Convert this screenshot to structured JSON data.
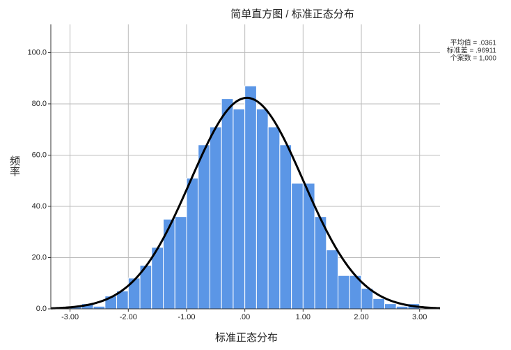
{
  "chart_data": {
    "type": "histogram",
    "title": "简单直方图 / 标准正态分布",
    "x_label": "标准正态分布",
    "y_label": "频率",
    "bins": [
      -3.0,
      -2.8,
      -2.6,
      -2.4,
      -2.2,
      -2.0,
      -1.8,
      -1.6,
      -1.4,
      -1.2,
      -1.0,
      -0.8,
      -0.6,
      -0.4,
      -0.2,
      0.0,
      0.2,
      0.4,
      0.6,
      0.8,
      1.0,
      1.2,
      1.4,
      1.6,
      1.8,
      2.0,
      2.2,
      2.4,
      2.6,
      2.8,
      3.0
    ],
    "values": [
      1,
      2,
      1,
      5,
      7,
      12,
      17,
      24,
      35,
      36,
      51,
      64,
      71,
      82,
      78,
      87,
      78,
      71,
      64,
      49,
      49,
      36,
      23,
      13,
      13,
      8,
      4,
      2,
      1,
      2
    ],
    "color": "#5b96e6",
    "curve_color": "#000000",
    "grid": true,
    "xlim": [
      -3.33,
      3.35
    ],
    "ylim": [
      0,
      111
    ],
    "xticks": [
      {
        "value": -3,
        "label": "-3.00"
      },
      {
        "value": -2,
        "label": "-2.00"
      },
      {
        "value": -1,
        "label": "-1.00"
      },
      {
        "value": 0,
        "label": ".00"
      },
      {
        "value": 1,
        "label": "1.00"
      },
      {
        "value": 2,
        "label": "2.00"
      },
      {
        "value": 3,
        "label": "3.00"
      }
    ],
    "yticks": [
      {
        "value": 0,
        "label": "0.0"
      },
      {
        "value": 20,
        "label": "20.0"
      },
      {
        "value": 40,
        "label": "40.0"
      },
      {
        "value": 60,
        "label": "60.0"
      },
      {
        "value": 80,
        "label": "80.0"
      },
      {
        "value": 100,
        "label": "100.0"
      }
    ],
    "stats": {
      "mean": {
        "text": "平均值 = .0361",
        "value": 0.0361
      },
      "sd": {
        "text": "标准差 = .96911",
        "value": 0.96911
      },
      "n": {
        "text": "个案数 = 1,000",
        "value": 1000
      }
    }
  }
}
